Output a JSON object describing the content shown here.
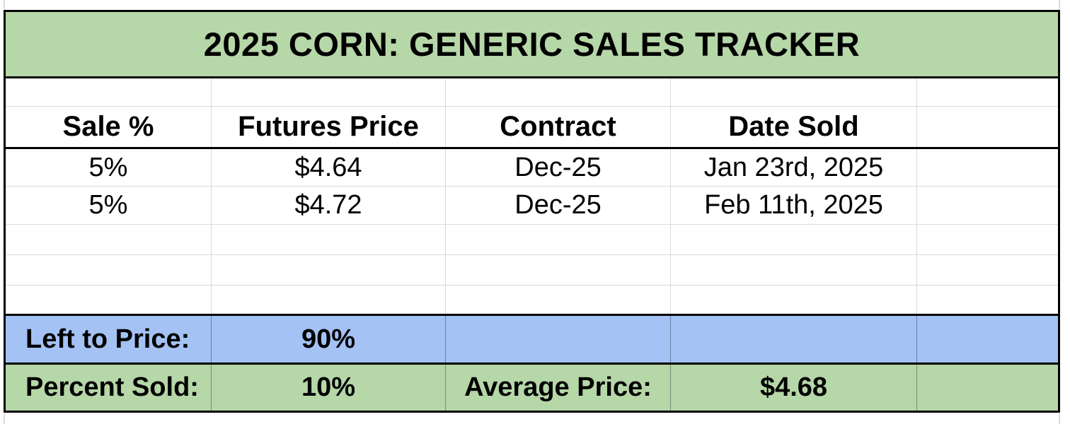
{
  "title": "2025 CORN: GENERIC SALES TRACKER",
  "table": {
    "columns": [
      {
        "label": "Sale %"
      },
      {
        "label": "Futures Price"
      },
      {
        "label": "Contract"
      },
      {
        "label": "Date Sold"
      },
      {
        "label": ""
      }
    ],
    "rows": [
      {
        "sale": "5%",
        "futures": "$4.64",
        "contract": "Dec-25",
        "date": "Jan 23rd, 2025"
      },
      {
        "sale": "5%",
        "futures": "$4.72",
        "contract": "Dec-25",
        "date": "Feb 11th, 2025"
      }
    ]
  },
  "summary": {
    "left_to_price_label": "Left to Price:",
    "left_to_price_value": "90%",
    "percent_sold_label": "Percent Sold:",
    "percent_sold_value": "10%",
    "average_price_label": "Average Price:",
    "average_price_value": "$4.68"
  },
  "colors": {
    "fill_green": "#b6d7a8",
    "fill_blue": "#a4c2f4",
    "border_dark": "#000000",
    "gridline": "#dadada",
    "text": "#000000"
  }
}
